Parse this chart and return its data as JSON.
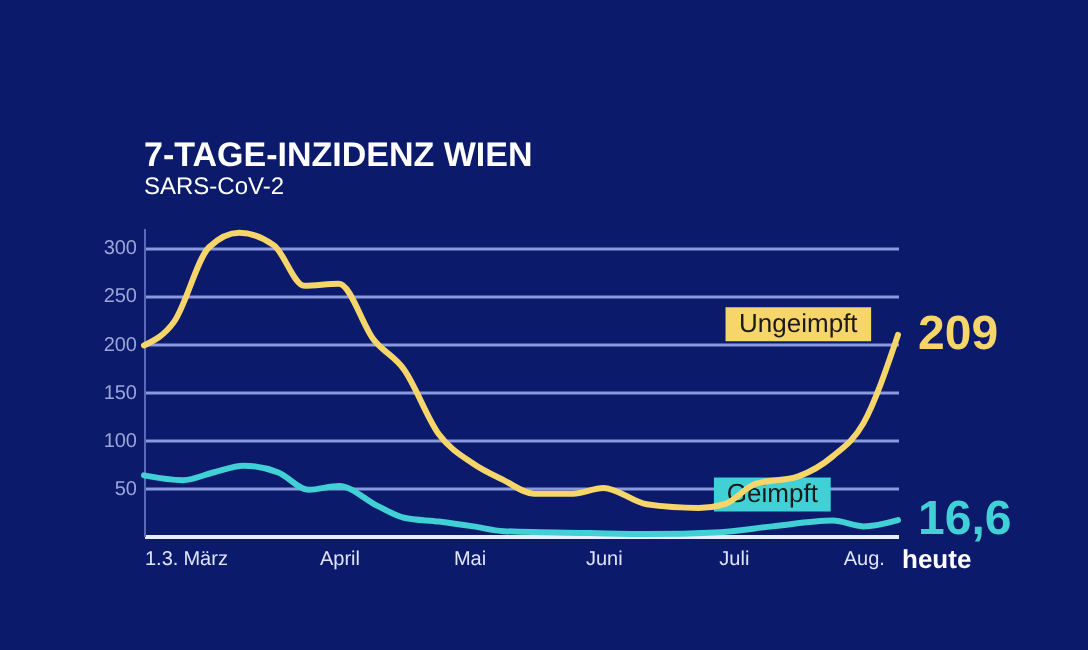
{
  "chart_data": {
    "type": "line",
    "title": "7-TAGE-INZIDENZ  WIEN",
    "subtitle": "SARS-CoV-2",
    "xlim": [
      "--03-01",
      "--08-22"
    ],
    "xticks": [
      {
        "value": "--03-01",
        "label": "1.3."
      },
      {
        "value": "--03-15",
        "label": "März"
      },
      {
        "value": "--04-15",
        "label": "April"
      },
      {
        "value": "--05-15",
        "label": "Mai"
      },
      {
        "value": "--06-15",
        "label": "Juni"
      },
      {
        "value": "--07-15",
        "label": "Juli"
      },
      {
        "value": "--08-14",
        "label": "Aug."
      }
    ],
    "ylim": [
      0,
      320
    ],
    "yticks": [
      50,
      100,
      150,
      200,
      250,
      300
    ],
    "grid": "y",
    "marker": "none",
    "line_style": "solid",
    "series": [
      {
        "name": "Ungeimpft",
        "color": "#f6d66a",
        "x": [
          "--03-01",
          "--03-08",
          "--03-16",
          "--03-23",
          "--03-31",
          "--04-07",
          "--04-15",
          "--04-23",
          "--04-30",
          "--05-08",
          "--05-16",
          "--05-23",
          "--05-30",
          "--06-08",
          "--06-15",
          "--06-25",
          "--07-07",
          "--07-13",
          "--07-20",
          "--07-30",
          "--08-07",
          "--08-14",
          "--08-22"
        ],
        "values": [
          198,
          223,
          300,
          315,
          302,
          260,
          262,
          204,
          173,
          106,
          75,
          58,
          44,
          44,
          50,
          33,
          29,
          33,
          54,
          62,
          83,
          117,
          209
        ],
        "value_labels": [
          null,
          null,
          null,
          null,
          null,
          null,
          null,
          null,
          null,
          null,
          null,
          null,
          null,
          null,
          null,
          null,
          null,
          null,
          null,
          null,
          null,
          null,
          "209"
        ]
      },
      {
        "name": "Geimpft",
        "color": "#40d0d6",
        "x": [
          "--03-01",
          "--03-10",
          "--03-17",
          "--03-24",
          "--04-01",
          "--04-08",
          "--04-15",
          "--04-24",
          "--04-30",
          "--05-08",
          "--05-16",
          "--05-23",
          "--06-12",
          "--06-25",
          "--07-12",
          "--07-24",
          "--08-07",
          "--08-14",
          "--08-22"
        ],
        "values": [
          63,
          58,
          66,
          73,
          66,
          48,
          52,
          31,
          19,
          15,
          10,
          5,
          3,
          2,
          4,
          10,
          16,
          10,
          16.6
        ],
        "value_labels": [
          null,
          null,
          null,
          null,
          null,
          null,
          null,
          null,
          null,
          null,
          null,
          null,
          null,
          null,
          null,
          null,
          null,
          null,
          "16,6"
        ]
      }
    ],
    "annotations": [
      "heute"
    ]
  }
}
